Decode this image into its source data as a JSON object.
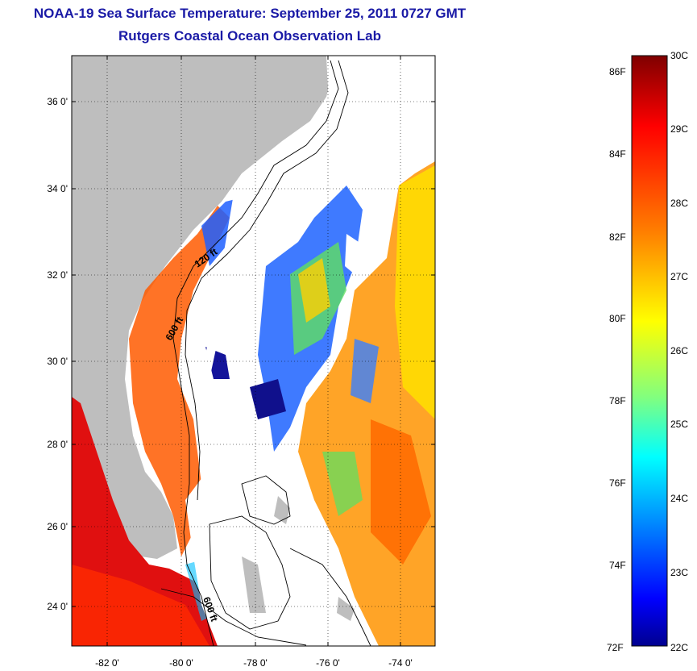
{
  "title_line1": "NOAA-19 Sea Surface Temperature:  September 25, 2011 0727 GMT",
  "title_line2": "Rutgers Coastal Ocean Observation Lab",
  "lat_labels": [
    "36 0'",
    "34 0'",
    "32 0'",
    "30 0'",
    "28 0'",
    "26 0'",
    "24 0'"
  ],
  "lon_labels": [
    "-82 0'",
    "-80 0'",
    "-78 0'",
    "-76 0'",
    "-74 0'"
  ],
  "isobath_labels": [
    "120 ft",
    "600 ft",
    "600 ft"
  ],
  "colorbar": {
    "fahrenheit_labels": [
      "86F",
      "84F",
      "82F",
      "80F",
      "78F",
      "76F",
      "74F",
      "72F"
    ],
    "celsius_labels": [
      "30C",
      "29C",
      "28C",
      "27C",
      "26C",
      "25C",
      "24C",
      "23C",
      "22C"
    ],
    "colors": [
      "#7f0000",
      "#ff0000",
      "#ff8000",
      "#ffff00",
      "#80ff80",
      "#00ffff",
      "#0080ff",
      "#0000ff",
      "#00008f"
    ]
  },
  "colors": {
    "land": "#bebebe",
    "title": "#1a1aa6",
    "no_data": "#ffffff"
  }
}
